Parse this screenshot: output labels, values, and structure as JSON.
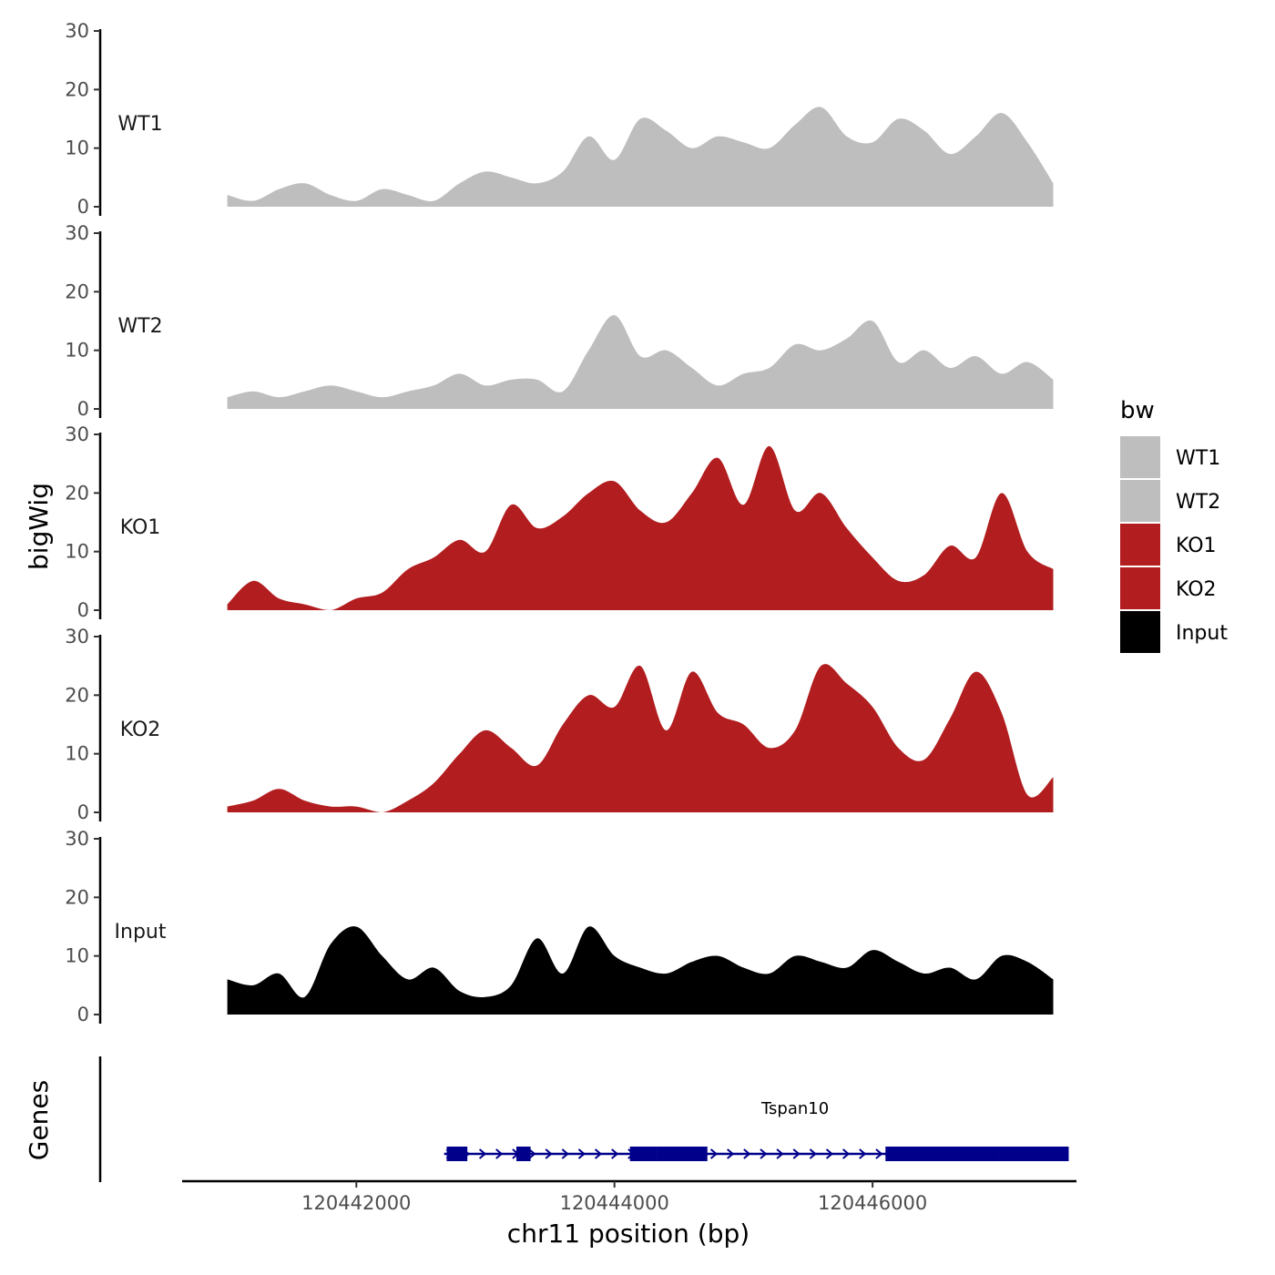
{
  "chart_data": {
    "type": "area",
    "ylabel": "bigWig",
    "xlabel": "chr11 position (bp)",
    "xlim": [
      120440650,
      120447580
    ],
    "ylim": [
      0,
      30
    ],
    "yticks": [
      "0",
      "10",
      "20",
      "30"
    ],
    "xticks": [
      {
        "value": 120442000,
        "label": "120442000"
      },
      {
        "value": 120444000,
        "label": "120444000"
      },
      {
        "value": 120446000,
        "label": "120446000"
      }
    ],
    "legend": {
      "title": "bw",
      "position": "right",
      "entries": [
        {
          "label": "WT1",
          "color": "#bebebe"
        },
        {
          "label": "WT2",
          "color": "#bebebe"
        },
        {
          "label": "KO1",
          "color": "#b21d1f"
        },
        {
          "label": "KO2",
          "color": "#b21d1f"
        },
        {
          "label": "Input",
          "color": "#000000"
        }
      ]
    },
    "x": [
      120441000,
      120441200,
      120441400,
      120441600,
      120441800,
      120442000,
      120442200,
      120442400,
      120442600,
      120442800,
      120443000,
      120443200,
      120443400,
      120443600,
      120443800,
      120444000,
      120444200,
      120444400,
      120444600,
      120444800,
      120445000,
      120445200,
      120445400,
      120445600,
      120445800,
      120446000,
      120446200,
      120446400,
      120446600,
      120446800,
      120447000,
      120447200,
      120447400
    ],
    "series": [
      {
        "name": "WT1",
        "color": "#bebebe",
        "values": [
          2,
          1,
          3,
          4,
          2,
          1,
          3,
          2,
          1,
          4,
          6,
          5,
          4,
          6,
          12,
          8,
          15,
          13,
          10,
          12,
          11,
          10,
          14,
          17,
          12,
          11,
          15,
          13,
          9,
          12,
          16,
          11,
          4
        ]
      },
      {
        "name": "WT2",
        "color": "#bebebe",
        "values": [
          2,
          3,
          2,
          3,
          4,
          3,
          2,
          3,
          4,
          6,
          4,
          5,
          5,
          3,
          10,
          16,
          9,
          10,
          7,
          4,
          6,
          7,
          11,
          10,
          12,
          15,
          8,
          10,
          7,
          9,
          6,
          8,
          5
        ]
      },
      {
        "name": "KO1",
        "color": "#b21d1f",
        "values": [
          1,
          5,
          2,
          1,
          0,
          2,
          3,
          7,
          9,
          12,
          10,
          18,
          14,
          16,
          20,
          22,
          17,
          15,
          20,
          26,
          18,
          28,
          17,
          20,
          14,
          9,
          5,
          6,
          11,
          9,
          20,
          10,
          7
        ]
      },
      {
        "name": "KO2",
        "color": "#b21d1f",
        "values": [
          1,
          2,
          4,
          2,
          1,
          1,
          0,
          2,
          5,
          10,
          14,
          11,
          8,
          15,
          20,
          18,
          25,
          14,
          24,
          17,
          15,
          11,
          14,
          25,
          22,
          18,
          11,
          9,
          16,
          24,
          17,
          3,
          6
        ]
      },
      {
        "name": "Input",
        "color": "#000000",
        "values": [
          6,
          5,
          7,
          3,
          12,
          15,
          10,
          6,
          8,
          4,
          3,
          5,
          13,
          7,
          15,
          10,
          8,
          7,
          9,
          10,
          8,
          7,
          10,
          9,
          8,
          11,
          9,
          7,
          8,
          6,
          10,
          9,
          6
        ]
      }
    ],
    "genes": {
      "label": "Genes",
      "name": "Tspan10",
      "color": "#00008b",
      "start": 120442680,
      "end": 120447520,
      "exons": [
        [
          120442700,
          120442860
        ],
        [
          120443240,
          120443350
        ],
        [
          120444120,
          120444330
        ],
        [
          120444330,
          120444720
        ],
        [
          120446100,
          120446980
        ],
        [
          120446980,
          120447520
        ]
      ]
    }
  }
}
